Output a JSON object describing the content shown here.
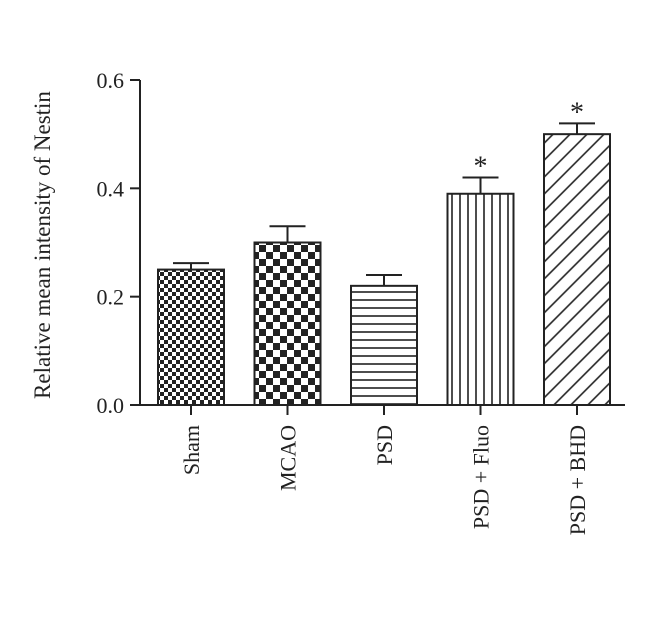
{
  "chart_data": {
    "type": "bar",
    "ylabel": "Relative mean intensity of Nestin",
    "xlabel": "",
    "ylim": [
      0,
      0.6
    ],
    "yticks": [
      "0.0",
      "0.2",
      "0.4",
      "0.6"
    ],
    "grid": false,
    "categories": [
      "Sham",
      "MCAO",
      "PSD",
      "PSD + Fluo",
      "PSD + BHD"
    ],
    "values": [
      0.25,
      0.3,
      0.22,
      0.39,
      0.5
    ],
    "errors": [
      0.012,
      0.03,
      0.02,
      0.03,
      0.02
    ],
    "annotations": [
      "",
      "",
      "",
      "*",
      "*"
    ],
    "patterns": [
      "fine-checker",
      "coarse-checker",
      "horizontal-lines",
      "vertical-lines",
      "diagonal-lines"
    ]
  }
}
